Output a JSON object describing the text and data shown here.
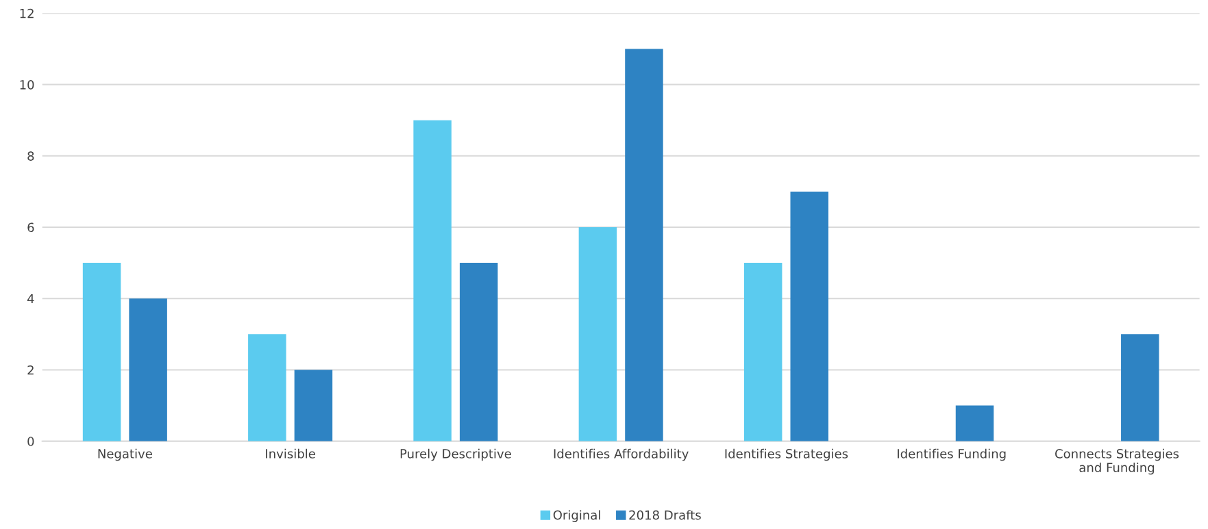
{
  "chart_data": {
    "type": "bar",
    "categories": [
      "Negative",
      "Invisible",
      "Purely Descriptive",
      "Identifies Affordability",
      "Identifies Strategies",
      "Identifies Funding",
      "Connects Strategies\nand Funding"
    ],
    "series": [
      {
        "name": "Original",
        "color": "#5bcbef",
        "values": [
          5,
          3,
          9,
          6,
          5,
          0,
          0
        ]
      },
      {
        "name": "2018 Drafts",
        "color": "#2e83c3",
        "values": [
          4,
          2,
          5,
          11,
          7,
          1,
          3
        ]
      }
    ],
    "ylim": [
      0,
      12
    ],
    "yticks": [
      0,
      2,
      4,
      6,
      8,
      10,
      12
    ],
    "grid": "y",
    "legend": "bottom"
  }
}
